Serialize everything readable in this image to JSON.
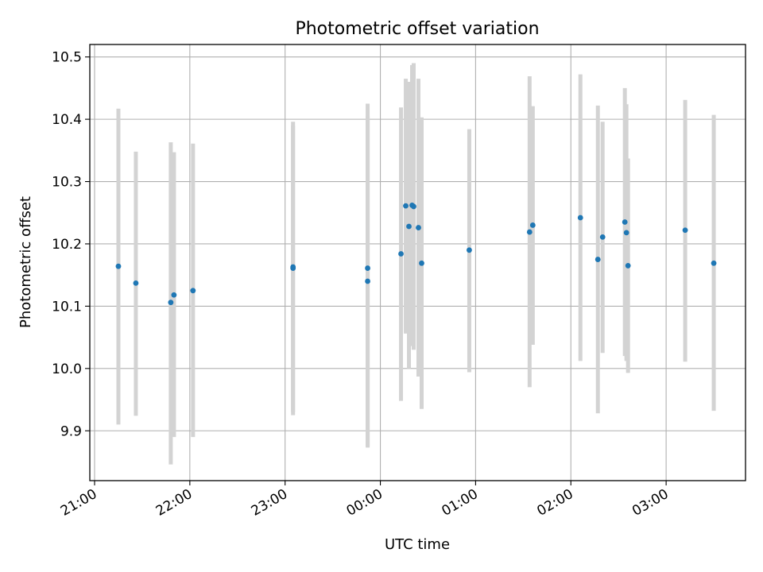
{
  "chart_data": {
    "type": "scatter",
    "title": "Photometric offset variation",
    "xlabel": "UTC time",
    "ylabel": "Photometric offset",
    "x_ticks": [
      "21:00",
      "22:00",
      "23:00",
      "00:00",
      "01:00",
      "02:00",
      "03:00"
    ],
    "y_ticks": [
      "9.9",
      "10.0",
      "10.1",
      "10.2",
      "10.3",
      "10.4",
      "10.5"
    ],
    "xlim": [
      "20:57",
      "03:50"
    ],
    "ylim": [
      9.82,
      10.52
    ],
    "grid": true,
    "point_color": "#1f77b4",
    "errorbar_color": "#d3d3d3",
    "points": [
      {
        "x": "21:15",
        "y": 10.164,
        "ylow": 9.91,
        "yhigh": 10.417
      },
      {
        "x": "21:26",
        "y": 10.137,
        "ylow": 9.924,
        "yhigh": 10.348
      },
      {
        "x": "21:48",
        "y": 10.106,
        "ylow": 9.846,
        "yhigh": 10.363
      },
      {
        "x": "21:50",
        "y": 10.118,
        "ylow": 9.89,
        "yhigh": 10.347
      },
      {
        "x": "22:02",
        "y": 10.125,
        "ylow": 9.89,
        "yhigh": 10.361
      },
      {
        "x": "23:05",
        "y": 10.163,
        "ylow": 9.93,
        "yhigh": 10.396
      },
      {
        "x": "23:05",
        "y": 10.161,
        "ylow": 9.925,
        "yhigh": 10.39
      },
      {
        "x": "23:52",
        "y": 10.161,
        "ylow": 9.873,
        "yhigh": 10.425
      },
      {
        "x": "23:52",
        "y": 10.14,
        "ylow": 9.875,
        "yhigh": 10.405
      },
      {
        "x": "00:13",
        "y": 10.184,
        "ylow": 9.948,
        "yhigh": 10.419
      },
      {
        "x": "00:16",
        "y": 10.261,
        "ylow": 10.056,
        "yhigh": 10.465
      },
      {
        "x": "00:18",
        "y": 10.228,
        "ylow": 10.0,
        "yhigh": 10.46
      },
      {
        "x": "00:20",
        "y": 10.262,
        "ylow": 10.036,
        "yhigh": 10.487
      },
      {
        "x": "00:21",
        "y": 10.26,
        "ylow": 10.03,
        "yhigh": 10.49
      },
      {
        "x": "00:24",
        "y": 10.226,
        "ylow": 9.987,
        "yhigh": 10.465
      },
      {
        "x": "00:26",
        "y": 10.169,
        "ylow": 9.935,
        "yhigh": 10.403
      },
      {
        "x": "00:56",
        "y": 10.19,
        "ylow": 9.994,
        "yhigh": 10.384
      },
      {
        "x": "01:34",
        "y": 10.219,
        "ylow": 9.97,
        "yhigh": 10.469
      },
      {
        "x": "01:36",
        "y": 10.23,
        "ylow": 10.038,
        "yhigh": 10.421
      },
      {
        "x": "02:06",
        "y": 10.242,
        "ylow": 10.012,
        "yhigh": 10.472
      },
      {
        "x": "02:17",
        "y": 10.175,
        "ylow": 9.928,
        "yhigh": 10.422
      },
      {
        "x": "02:20",
        "y": 10.211,
        "ylow": 10.025,
        "yhigh": 10.396
      },
      {
        "x": "02:34",
        "y": 10.235,
        "ylow": 10.02,
        "yhigh": 10.45
      },
      {
        "x": "02:35",
        "y": 10.218,
        "ylow": 10.012,
        "yhigh": 10.424
      },
      {
        "x": "02:36",
        "y": 10.165,
        "ylow": 9.993,
        "yhigh": 10.337
      },
      {
        "x": "03:12",
        "y": 10.222,
        "ylow": 10.011,
        "yhigh": 10.431
      },
      {
        "x": "03:30",
        "y": 10.169,
        "ylow": 9.932,
        "yhigh": 10.407
      }
    ]
  }
}
